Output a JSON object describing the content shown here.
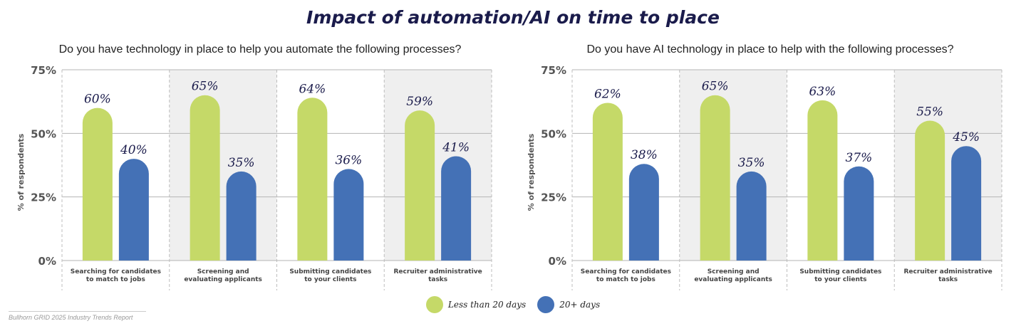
{
  "title": "Impact of automation/AI on time to place",
  "colors": {
    "green": "#c5d968",
    "blue": "#4471b6",
    "band": "#efefef",
    "title": "#1a1b4b"
  },
  "legend": {
    "items": [
      {
        "label": "Less than 20 days",
        "color": "#c5d968"
      },
      {
        "label": "20+ days",
        "color": "#4471b6"
      }
    ]
  },
  "source": "Bullhorn GRID 2025 Industry Trends Report",
  "chart_data": [
    {
      "type": "bar",
      "title": "Do you have technology in place to help you automate the following processes?",
      "ylabel": "% of respondents",
      "ylim": [
        0,
        75
      ],
      "yticks": [
        "0%",
        "25%",
        "50%",
        "75%"
      ],
      "categories": [
        "Searching for candidates to match to jobs",
        "Screening and evaluating applicants",
        "Submitting candidates to your clients",
        "Recruiter administrative tasks"
      ],
      "category_lines": [
        [
          "Searching for candidates",
          "to match to jobs"
        ],
        [
          "Screening and",
          "evaluating applicants"
        ],
        [
          "Submitting candidates",
          "to your clients"
        ],
        [
          "Recruiter administrative",
          "tasks"
        ]
      ],
      "series": [
        {
          "name": "Less than 20 days",
          "values": [
            60,
            65,
            64,
            59
          ],
          "labels": [
            "60%",
            "65%",
            "64%",
            "59%"
          ]
        },
        {
          "name": "20+ days",
          "values": [
            40,
            35,
            36,
            41
          ],
          "labels": [
            "40%",
            "35%",
            "36%",
            "41%"
          ]
        }
      ]
    },
    {
      "type": "bar",
      "title": "Do you have AI technology in place to help with the following processes?",
      "ylabel": "% of respondents",
      "ylim": [
        0,
        75
      ],
      "yticks": [
        "0%",
        "25%",
        "50%",
        "75%"
      ],
      "categories": [
        "Searching for candidates to match to jobs",
        "Screening and evaluating applicants",
        "Submitting candidates to your clients",
        "Recruiter administrative tasks"
      ],
      "category_lines": [
        [
          "Searching for candidates",
          "to match to jobs"
        ],
        [
          "Screening and",
          "evaluating applicants"
        ],
        [
          "Submitting candidates",
          "to your clients"
        ],
        [
          "Recruiter administrative",
          "tasks"
        ]
      ],
      "series": [
        {
          "name": "Less than 20 days",
          "values": [
            62,
            65,
            63,
            55
          ],
          "labels": [
            "62%",
            "65%",
            "63%",
            "55%"
          ]
        },
        {
          "name": "20+ days",
          "values": [
            38,
            35,
            37,
            45
          ],
          "labels": [
            "38%",
            "35%",
            "37%",
            "45%"
          ]
        }
      ]
    }
  ]
}
